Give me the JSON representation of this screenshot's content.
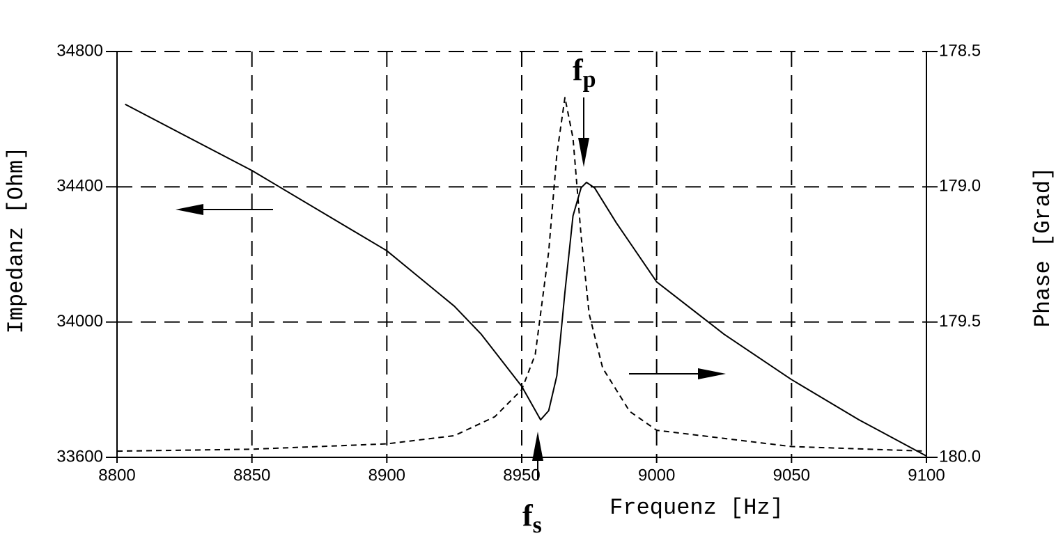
{
  "chart_data": {
    "type": "line",
    "xlabel": "Frequenz [Hz]",
    "ylabel": "Impedanz [Ohm]",
    "y2label": "Phase [Grad]",
    "xlim": [
      8800,
      9100
    ],
    "xticks": [
      8800,
      8850,
      8900,
      8950,
      9000,
      9050,
      9100
    ],
    "ylim": [
      33600,
      34800
    ],
    "yticks": [
      33600,
      34000,
      34400,
      34800
    ],
    "y2lim": [
      180,
      178.5
    ],
    "y2ticks": [
      {
        "value": 180,
        "label": "180.0"
      },
      179.5,
      {
        "value": 179,
        "label": "179.0"
      },
      178.5
    ],
    "grid": true,
    "series": [
      {
        "name": "Impedanz",
        "color": "#000000",
        "dash": false,
        "x": [
          8803,
          8850,
          8900,
          8925,
          8935,
          8950,
          8957,
          8960,
          8963,
          8966,
          8969,
          8972,
          8974,
          8977,
          8985,
          9000,
          9025,
          9050,
          9075,
          9100
        ],
        "values": [
          34644,
          34448,
          34211,
          34047,
          33964,
          33810,
          33711,
          33738,
          33841,
          34088,
          34314,
          34397,
          34413,
          34397,
          34294,
          34119,
          33964,
          33830,
          33711,
          33604
        ]
      },
      {
        "name": "Phase",
        "color": "#000000",
        "dash": true,
        "axis": "y2",
        "x": [
          8800,
          8850,
          8900,
          8925,
          8940,
          8950,
          8955,
          8960,
          8963,
          8966,
          8969,
          8972,
          8975,
          8980,
          8990,
          9000,
          9050,
          9100
        ],
        "values": [
          179.977,
          179.97,
          179.95,
          179.92,
          179.85,
          179.75,
          179.62,
          179.24,
          178.88,
          178.67,
          178.82,
          179.18,
          179.47,
          179.67,
          179.83,
          179.9,
          179.96,
          179.977
        ]
      }
    ],
    "annotations": [
      {
        "base": "f",
        "sub": "p"
      },
      {
        "base": "f",
        "sub": "s"
      }
    ]
  }
}
